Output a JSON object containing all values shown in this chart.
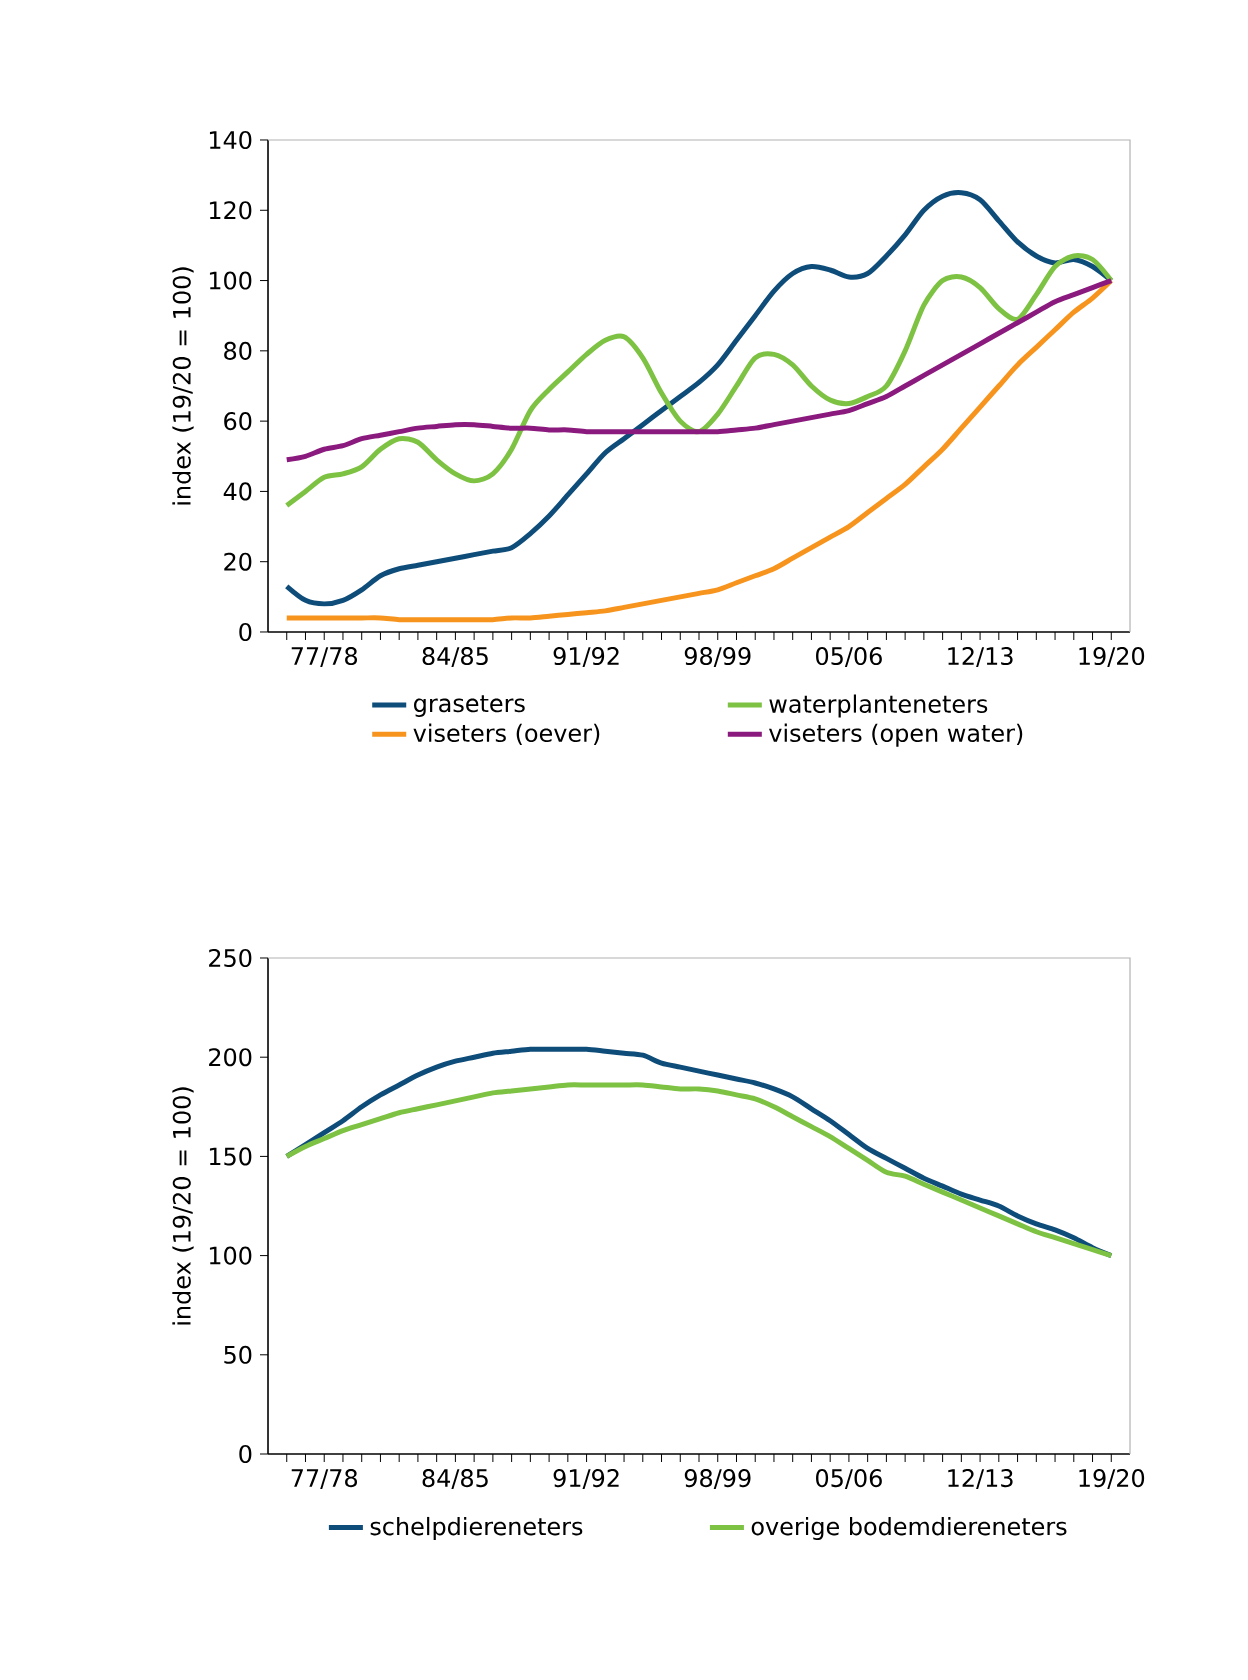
{
  "chart_data": [
    {
      "type": "line",
      "ylabel": "index (19/20 = 100)",
      "categories": [
        null,
        null,
        "77/78",
        null,
        null,
        null,
        null,
        null,
        null,
        "84/85",
        null,
        null,
        null,
        null,
        null,
        null,
        "91/92",
        null,
        null,
        null,
        null,
        null,
        null,
        "98/99",
        null,
        null,
        null,
        null,
        null,
        null,
        "05/06",
        null,
        null,
        null,
        null,
        null,
        null,
        "12/13",
        null,
        null,
        null,
        null,
        null,
        null,
        "19/20"
      ],
      "ylim": [
        0,
        140
      ],
      "yticks": [
        0,
        20,
        40,
        60,
        80,
        100,
        120,
        140
      ],
      "legend": "bottom",
      "marker": "none",
      "series": [
        {
          "name": "graseters",
          "color": "#0e4c7a",
          "values": [
            13,
            9,
            8,
            9,
            12,
            16,
            18,
            19,
            20,
            21,
            22,
            23,
            24,
            28,
            33,
            39,
            45,
            51,
            55,
            59,
            63,
            67,
            71,
            76,
            83,
            90,
            97,
            102,
            104,
            103,
            101,
            102,
            107,
            113,
            120,
            124,
            125,
            123,
            117,
            111,
            107,
            105,
            106,
            104,
            100
          ]
        },
        {
          "name": "waterplanteneters",
          "color": "#7dc242",
          "values": [
            36,
            40,
            44,
            45,
            47,
            52,
            55,
            54,
            49,
            45,
            43,
            45,
            52,
            63,
            69,
            74,
            79,
            83,
            84,
            78,
            68,
            60,
            57,
            62,
            70,
            78,
            79,
            76,
            70,
            66,
            65,
            67,
            70,
            80,
            93,
            100,
            101,
            98,
            92,
            89,
            96,
            104,
            107,
            106,
            100
          ]
        },
        {
          "name": "viseters (oever)",
          "color": "#f7941d",
          "values": [
            4,
            4,
            4,
            4,
            4,
            4,
            3.5,
            3.5,
            3.5,
            3.5,
            3.5,
            3.5,
            4,
            4,
            4.5,
            5,
            5.5,
            6,
            7,
            8,
            9,
            10,
            11,
            12,
            14,
            16,
            18,
            21,
            24,
            27,
            30,
            34,
            38,
            42,
            47,
            52,
            58,
            64,
            70,
            76,
            81,
            86,
            91,
            95,
            100
          ]
        },
        {
          "name": "viseters (open water)",
          "color": "#8b1a7e",
          "values": [
            49,
            50,
            52,
            53,
            55,
            56,
            57,
            58,
            58.5,
            59,
            59,
            58.5,
            58,
            58,
            57.5,
            57.5,
            57,
            57,
            57,
            57,
            57,
            57,
            57,
            57,
            57.5,
            58,
            59,
            60,
            61,
            62,
            63,
            65,
            67,
            70,
            73,
            76,
            79,
            82,
            85,
            88,
            91,
            94,
            96,
            98,
            100
          ]
        }
      ]
    },
    {
      "type": "line",
      "ylabel": "index (19/20 = 100)",
      "categories": [
        null,
        null,
        "77/78",
        null,
        null,
        null,
        null,
        null,
        null,
        "84/85",
        null,
        null,
        null,
        null,
        null,
        null,
        "91/92",
        null,
        null,
        null,
        null,
        null,
        null,
        "98/99",
        null,
        null,
        null,
        null,
        null,
        null,
        "05/06",
        null,
        null,
        null,
        null,
        null,
        null,
        "12/13",
        null,
        null,
        null,
        null,
        null,
        null,
        "19/20"
      ],
      "ylim": [
        0,
        250
      ],
      "yticks": [
        0,
        50,
        100,
        150,
        200,
        250
      ],
      "legend": "bottom",
      "marker": "none",
      "series": [
        {
          "name": "schelpdiereneters",
          "color": "#0e4c7a",
          "values": [
            150,
            156,
            162,
            168,
            175,
            181,
            186,
            191,
            195,
            198,
            200,
            202,
            203,
            204,
            204,
            204,
            204,
            203,
            202,
            201,
            197,
            195,
            193,
            191,
            189,
            187,
            184,
            180,
            174,
            168,
            161,
            154,
            149,
            144,
            139,
            135,
            131,
            128,
            125,
            120,
            116,
            113,
            109,
            104,
            100
          ]
        },
        {
          "name": "overige bodemdiereneters",
          "color": "#7dc242",
          "values": [
            150,
            155,
            159,
            163,
            166,
            169,
            172,
            174,
            176,
            178,
            180,
            182,
            183,
            184,
            185,
            186,
            186,
            186,
            186,
            186,
            185,
            184,
            184,
            183,
            181,
            179,
            175,
            170,
            165,
            160,
            154,
            148,
            142,
            140,
            136,
            132,
            128,
            124,
            120,
            116,
            112,
            109,
            106,
            103,
            100
          ]
        }
      ]
    }
  ]
}
